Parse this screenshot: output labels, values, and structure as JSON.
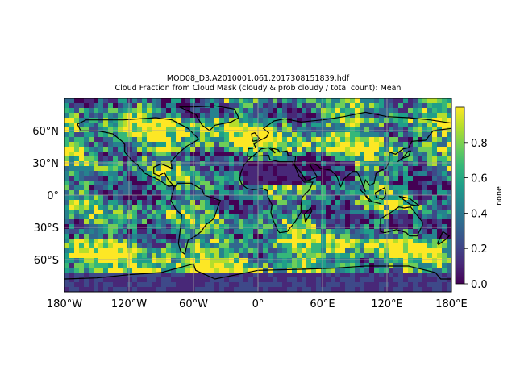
{
  "figure": {
    "file_title": "MOD08_D3.A2010001.061.2017308151839.hdf",
    "variable_title": "Cloud Fraction from Cloud Mask (cloudy & prob cloudy / total count): Mean"
  },
  "map": {
    "projection": "PlateCarree",
    "lon_range": [
      -180,
      180
    ],
    "lat_range": [
      -90,
      90
    ],
    "gridlines": true,
    "coastlines": true,
    "x_ticks": [
      {
        "value": -180,
        "label": "180°W"
      },
      {
        "value": -120,
        "label": "120°W"
      },
      {
        "value": -60,
        "label": "60°W"
      },
      {
        "value": 0,
        "label": "0°"
      },
      {
        "value": 60,
        "label": "60°E"
      },
      {
        "value": 120,
        "label": "120°E"
      },
      {
        "value": 180,
        "label": "180°E"
      }
    ],
    "y_ticks": [
      {
        "value": 60,
        "label": "60°N"
      },
      {
        "value": 30,
        "label": "30°N"
      },
      {
        "value": 0,
        "label": "0°"
      },
      {
        "value": -30,
        "label": "30°S"
      },
      {
        "value": -60,
        "label": "60°S"
      }
    ]
  },
  "colorbar": {
    "colormap": "viridis",
    "range": [
      0.0,
      1.0
    ],
    "label": "none",
    "ticks": [
      {
        "value": 0.0,
        "label": "0.0"
      },
      {
        "value": 0.2,
        "label": "0.2"
      },
      {
        "value": 0.4,
        "label": "0.4"
      },
      {
        "value": 0.6,
        "label": "0.6"
      },
      {
        "value": 0.8,
        "label": "0.8"
      }
    ],
    "colors": [
      "#440154",
      "#482878",
      "#3e4989",
      "#31688e",
      "#26828e",
      "#1f9e89",
      "#35b779",
      "#6ece58",
      "#b5de2b",
      "#fde725"
    ]
  }
}
